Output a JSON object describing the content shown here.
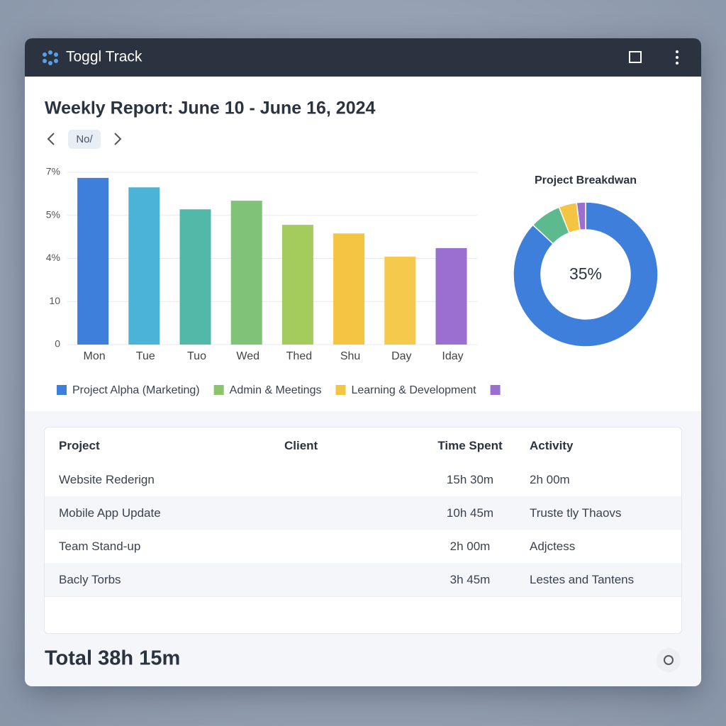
{
  "window": {
    "app_name": "Toggl Track"
  },
  "report": {
    "title": "Weekly Report: June 10 - June 16, 2024",
    "nav_label": "No/"
  },
  "chart_data": [
    {
      "type": "bar",
      "categories": [
        "Mon",
        "Tue",
        "Tuo",
        "Wed",
        "Thed",
        "Shu",
        "Day",
        "Iday"
      ],
      "values": [
        3.87,
        3.65,
        3.14,
        3.34,
        2.78,
        2.58,
        2.04,
        2.24
      ],
      "colors": [
        "#3f7fdc",
        "#4cb3d8",
        "#52b8a8",
        "#7fc278",
        "#a3cc5c",
        "#f4c542",
        "#f5c94b",
        "#9b6fcf"
      ],
      "ylim": [
        0,
        4
      ],
      "yticks": [
        0,
        {
          "value": 1,
          "label": "10"
        },
        {
          "value": 2,
          "label": "4%"
        },
        {
          "value": 3,
          "label": "5%"
        },
        {
          "value": 4,
          "label": "7%"
        }
      ],
      "grid": true,
      "legend": [
        {
          "name": "Project Alpha (Marketing)",
          "color": "#3f7fdc"
        },
        {
          "name": "Admin & Meetings",
          "color": "#8cc46c"
        },
        {
          "name": "Learning & Development",
          "color": "#f4c542"
        },
        {
          "name": null,
          "color": "#9b6fcf"
        }
      ]
    },
    {
      "type": "pie",
      "title": "Project Breakdwan",
      "center_label": "35%",
      "values": [
        87,
        7,
        4,
        2
      ],
      "colors": [
        "#3f7fdc",
        "#5dba8e",
        "#f4c542",
        "#9b6fcf"
      ]
    }
  ],
  "table": {
    "columns": [
      "Project",
      "Client",
      "Time Spent",
      "Activity"
    ],
    "rows": [
      [
        "Website Rederign",
        null,
        "15h 30m",
        "2h 00m"
      ],
      [
        "Mobile App Update",
        null,
        "10h 45m",
        "Truste tly Thaovs"
      ],
      [
        "Team Stand-up",
        null,
        "2h 00m",
        "Adjctess"
      ],
      [
        "Bacly Torbs",
        null,
        "3h 45m",
        "Lestes and Tantens"
      ]
    ]
  },
  "total": "Total 38h 15m"
}
